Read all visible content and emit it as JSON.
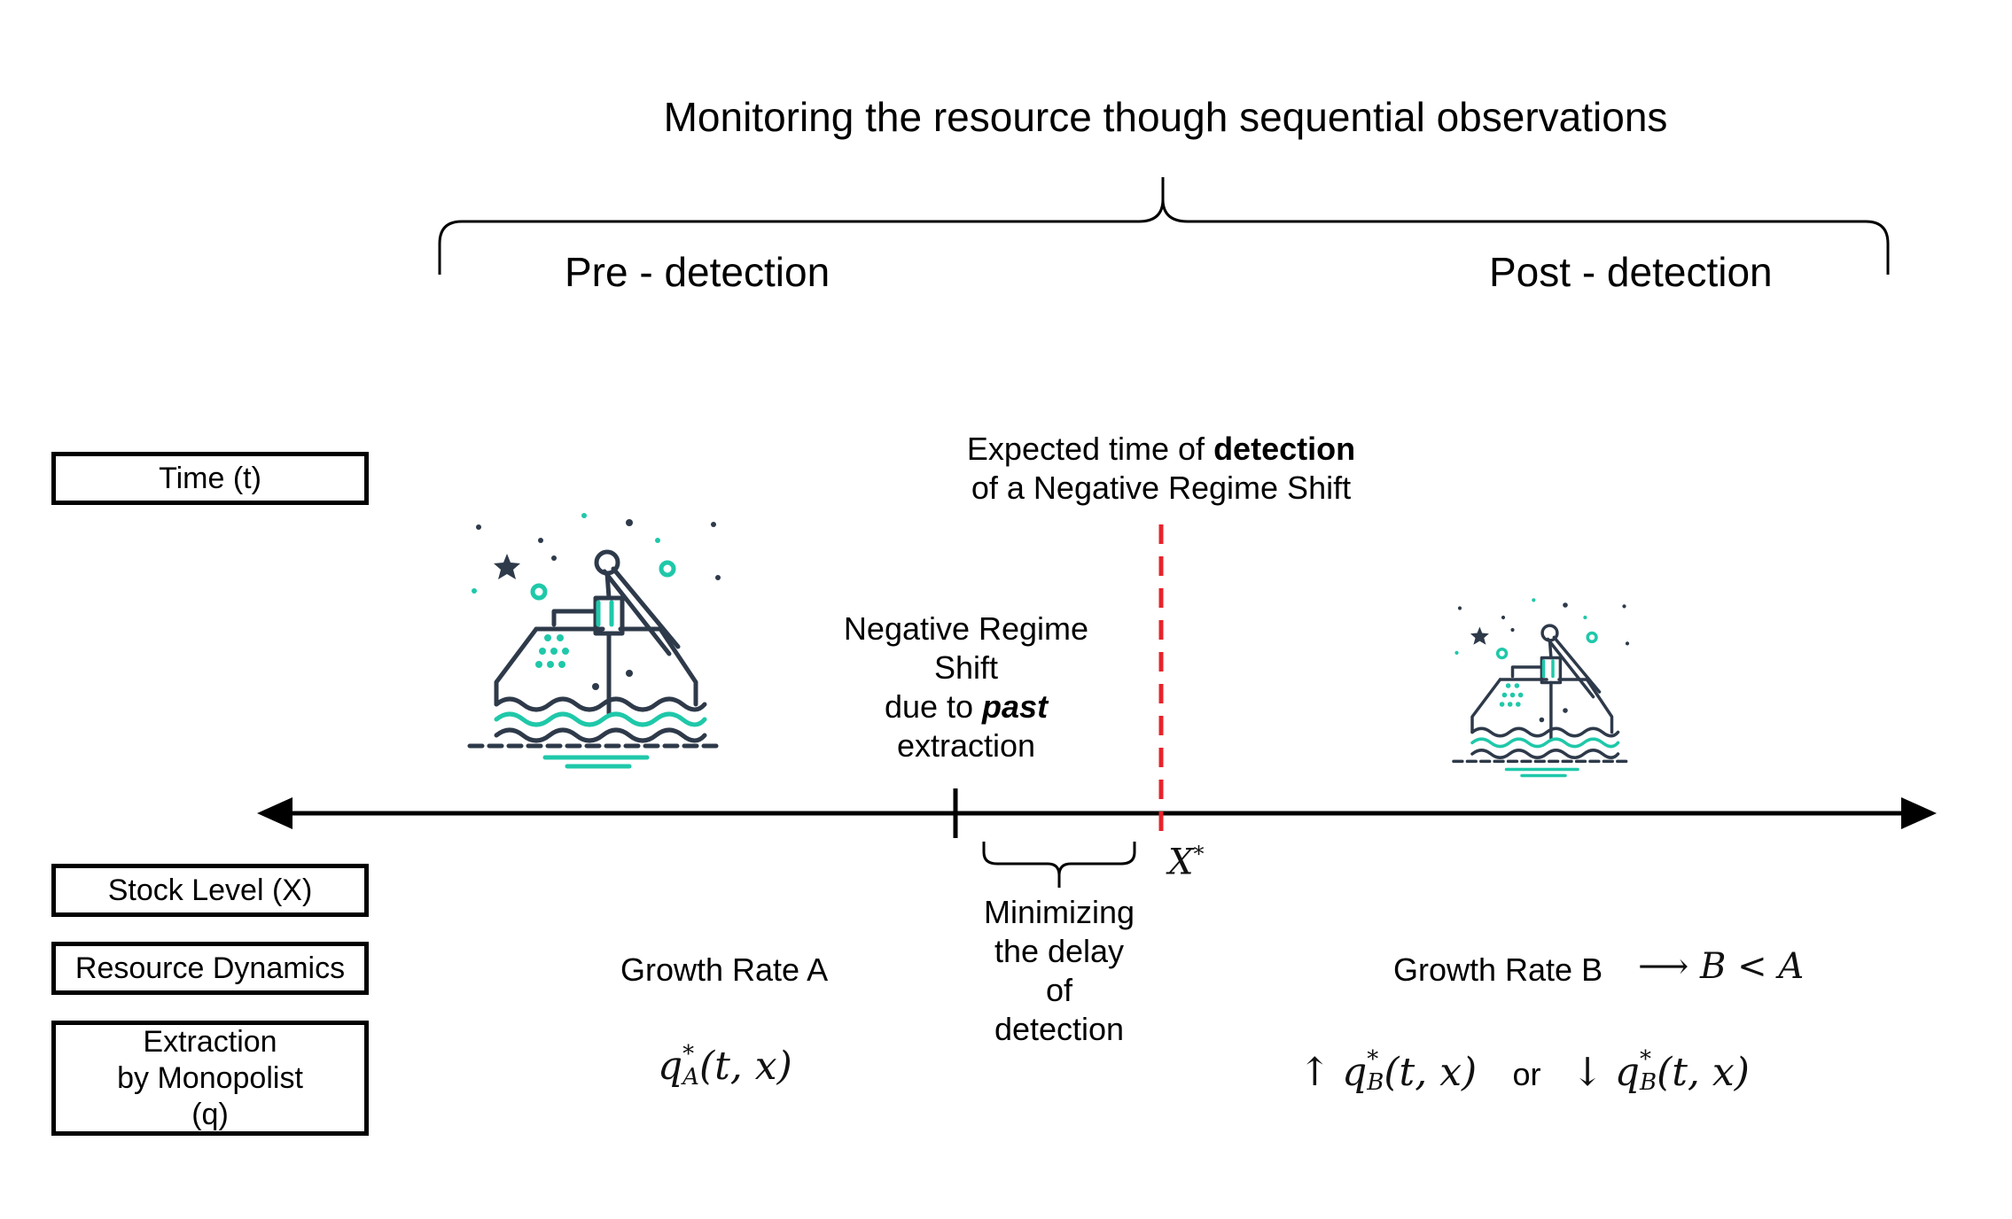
{
  "title": "Monitoring the resource though sequential observations",
  "phases": {
    "pre": "Pre - detection",
    "post": "Post - detection"
  },
  "row_labels": {
    "time": "Time (t)",
    "stock": "Stock Level (X)",
    "dynamics": "Resource Dynamics",
    "extraction_l1": "Extraction",
    "extraction_l2": "by Monopolist",
    "extraction_l3": "(q)"
  },
  "detection_label": {
    "line1_prefix": "Expected time of ",
    "line1_bold": "detection",
    "line2": "of a Negative Regime Shift"
  },
  "shift_label": {
    "line1": "Negative Regime",
    "line2": "Shift",
    "line3_prefix": "due to ",
    "line3_bold": "past",
    "line4": "extraction"
  },
  "threshold": {
    "symbol": "X",
    "sup": "*"
  },
  "delay_label": {
    "line1": "Minimizing",
    "line2": "the delay",
    "line3": "of",
    "line4": "detection"
  },
  "growth": {
    "a": "Growth Rate A",
    "b": "Growth Rate B",
    "b_relation": "⟶ B < A"
  },
  "extraction_formulas": {
    "a_base": "q",
    "a_sup": "*",
    "a_sub": "A",
    "a_args": "(t, x)",
    "b_up_arrow": "↑",
    "b_base": "q",
    "b_sup": "*",
    "b_sub": "B",
    "b_args": "(t, x)",
    "or": "or",
    "b_down_arrow": "↓"
  },
  "colors": {
    "axis": "#000000",
    "detection_line": "#e8232a",
    "icon_dark": "#2e3a4a",
    "icon_accent": "#1fc8a9"
  },
  "icons": {
    "pump_left": "water-pump-icon",
    "pump_right": "water-pump-icon"
  }
}
